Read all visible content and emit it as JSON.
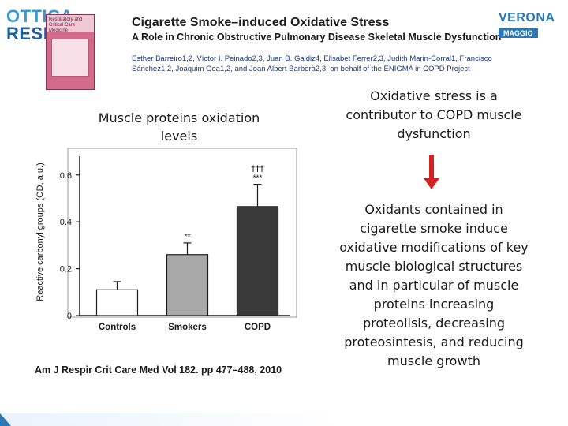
{
  "header": {
    "logo_left_line1": "OTTICA",
    "logo_left_line2": "RESP",
    "journal_cover_text": "Respiratory and Critical Care Medicine",
    "paper_title": "Cigarette Smoke–induced Oxidative Stress",
    "paper_subtitle": "A Role in Chronic Obstructive Pulmonary Disease Skeletal Muscle Dysfunction",
    "authors": "Esther Barreiro1,2, Víctor I. Peinado2,3, Juan B. Galdiz4, Elisabet Ferrer2,3, Judith Marin-Corral1, Francisco Sánchez1,2, Joaquim Gea1,2, and Joan Albert Barberà2,3, on behalf of the ENIGMA in COPD Project",
    "logo_right_line1": "VERONA",
    "logo_right_line2": "MAGGIO"
  },
  "left_panel": {
    "title": "Muscle proteins oxidation levels",
    "citation": "Am J Respir Crit Care Med   Vol 182. pp 477–488, 2010"
  },
  "chart_data": {
    "type": "bar",
    "categories": [
      "Controls",
      "Smokers",
      "COPD"
    ],
    "values": [
      0.11,
      0.26,
      0.465
    ],
    "errors": [
      0.035,
      0.05,
      0.095
    ],
    "colors": [
      "#ffffff",
      "#a8a8a8",
      "#3a3a3a"
    ],
    "annotations": [
      "",
      "**",
      "***"
    ],
    "annotations_top": [
      "",
      "",
      "†††"
    ],
    "ylabel": "Reactive carbonyl groups (OD, a.u.)",
    "yticks": [
      0,
      0.2,
      0.4,
      0.6
    ],
    "ytick_labels": [
      "0",
      "0.2",
      "0.4",
      "0.6"
    ],
    "ylim": [
      0,
      0.68
    ],
    "grid": false
  },
  "right_panel": {
    "statement_1": "Oxidative stress is a contributor to COPD muscle dysfunction",
    "statement_2": "Oxidants contained in cigarette smoke induce oxidative modifications of key muscle biological structures and in particular of muscle proteins increasing proteolisis, decreasing proteosintesis, and reducing muscle growth",
    "arrow_icon": "arrow-down-icon",
    "arrow_color": "#d42020"
  }
}
